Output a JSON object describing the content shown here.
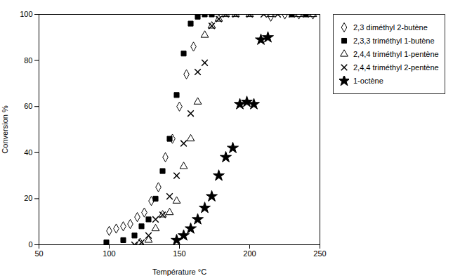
{
  "chart_data": {
    "type": "scatter",
    "xlabel": "Température °C",
    "ylabel": "Conversion %",
    "xlim": [
      50,
      250
    ],
    "ylim": [
      0,
      100
    ],
    "xticks": [
      50,
      100,
      150,
      200,
      250
    ],
    "yticks": [
      0,
      20,
      40,
      60,
      80,
      100
    ],
    "grid": false,
    "legend": "right",
    "series": [
      {
        "name": "2,3 diméthyl 2-butène",
        "marker": "diamond-open",
        "color": "black",
        "x": [
          100,
          105,
          110,
          115,
          120,
          125,
          130,
          135,
          140,
          145,
          150,
          155,
          160,
          215,
          225,
          235,
          245
        ],
        "values": [
          6,
          7,
          8,
          9,
          12,
          14,
          19,
          25,
          38,
          46,
          60,
          74,
          86,
          99,
          100,
          100,
          100
        ]
      },
      {
        "name": "2,3,3 triméthyl 1-butène",
        "marker": "square",
        "color": "black",
        "x": [
          98,
          110,
          118,
          123,
          128,
          133,
          138,
          143,
          148,
          153,
          158,
          163,
          168,
          173,
          230,
          240
        ],
        "values": [
          1,
          2,
          4,
          8,
          11,
          20,
          32,
          46,
          65,
          83,
          96,
          99,
          100,
          100,
          100,
          100
        ]
      },
      {
        "name": "2,4,4 triméthyl 1-pentène",
        "marker": "triangle-open",
        "color": "black",
        "x": [
          122,
          128,
          133,
          138,
          143,
          148,
          153,
          158,
          163,
          168,
          173,
          178,
          183,
          190,
          200,
          215,
          235,
          245
        ],
        "values": [
          1,
          2,
          7,
          13,
          14,
          19,
          34,
          46,
          62,
          91,
          95,
          98,
          100,
          100,
          100,
          100,
          100,
          100
        ]
      },
      {
        "name": "2,4,4 triméthyl 2-pentène",
        "marker": "x",
        "color": "black",
        "x": [
          118,
          123,
          128,
          133,
          138,
          143,
          148,
          153,
          158,
          163,
          168,
          173,
          178,
          183,
          190,
          200,
          210,
          220,
          230,
          240
        ],
        "values": [
          0,
          1,
          4,
          11,
          13,
          21,
          30,
          44,
          57,
          75,
          79,
          95,
          98,
          100,
          100,
          100,
          100,
          100,
          100,
          100
        ]
      },
      {
        "name": "1-octène",
        "marker": "star",
        "color": "black",
        "x": [
          148,
          153,
          158,
          163,
          168,
          173,
          178,
          183,
          188,
          193,
          198,
          203,
          208,
          213
        ],
        "values": [
          2,
          4,
          7,
          11,
          16,
          21,
          30,
          38,
          42,
          61,
          62,
          61,
          89,
          90
        ]
      }
    ]
  }
}
